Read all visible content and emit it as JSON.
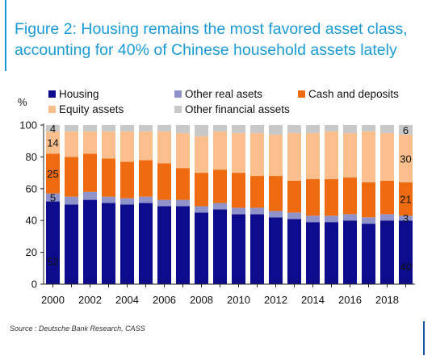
{
  "title_lines": [
    "Figure 2: Housing remains the most favored asset class,",
    "accounting for 40% of Chinese household assets lately"
  ],
  "source": "Source : Deutsche Bank Research, CASS",
  "chart_data": {
    "type": "bar",
    "stacked": true,
    "ylabel": "%",
    "ylim": [
      0,
      100
    ],
    "yticks": [
      0,
      20,
      40,
      60,
      80,
      100
    ],
    "legend_position": "top",
    "categories": [
      "2000",
      "2001",
      "2002",
      "2003",
      "2004",
      "2005",
      "2006",
      "2007",
      "2008",
      "2009",
      "2010",
      "2011",
      "2012",
      "2013",
      "2014",
      "2015",
      "2016",
      "2017",
      "2018",
      "2019"
    ],
    "xtick_labels": [
      "2000",
      "2002",
      "2004",
      "2006",
      "2008",
      "2010",
      "2012",
      "2014",
      "2016",
      "2018"
    ],
    "series": [
      {
        "name": "Housing",
        "color": "#0c0c8c",
        "values": [
          52,
          50,
          53,
          51,
          50,
          51,
          49,
          49,
          45,
          47,
          44,
          44,
          42,
          41,
          39,
          39,
          40,
          38,
          40,
          40
        ]
      },
      {
        "name": "Other real asets",
        "color": "#8f93c9",
        "values": [
          5,
          5,
          5,
          4,
          4,
          4,
          4,
          4,
          4,
          4,
          4,
          4,
          4,
          4,
          4,
          4,
          4,
          4,
          4,
          3
        ]
      },
      {
        "name": "Cash and deposits",
        "color": "#ef6b0f",
        "values": [
          25,
          25,
          24,
          24,
          23,
          23,
          23,
          20,
          21,
          21,
          22,
          20,
          22,
          20,
          23,
          23,
          23,
          22,
          21,
          21
        ]
      },
      {
        "name": "Equity assets",
        "color": "#fbbe8d",
        "values": [
          14,
          16,
          14,
          17,
          19,
          18,
          20,
          22,
          23,
          24,
          25,
          27,
          26,
          30,
          29,
          30,
          28,
          32,
          30,
          30
        ]
      },
      {
        "name": "Other financial assets",
        "color": "#c8c8c8",
        "values": [
          4,
          4,
          4,
          4,
          4,
          4,
          4,
          5,
          7,
          4,
          5,
          5,
          6,
          5,
          5,
          4,
          5,
          4,
          5,
          6
        ]
      }
    ],
    "data_labels": {
      "first": [
        52,
        5,
        25,
        14,
        4
      ],
      "last": [
        40,
        3,
        21,
        30,
        6
      ]
    }
  }
}
